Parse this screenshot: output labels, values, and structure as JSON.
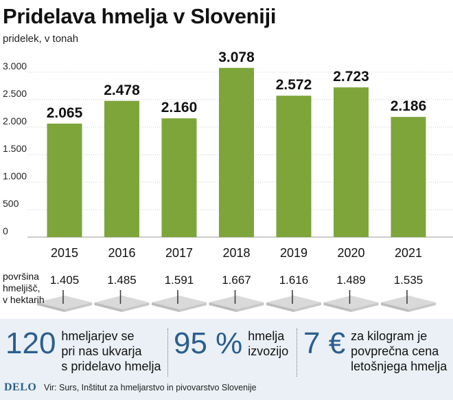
{
  "title": "Pridelava hmelja v Sloveniji",
  "subtitle": "pridelek, v tonah",
  "chart_data": {
    "type": "bar",
    "title": "Pridelava hmelja v Sloveniji",
    "subtitle": "pridelek, v tonah",
    "categories": [
      "2015",
      "2016",
      "2017",
      "2018",
      "2019",
      "2020",
      "2021"
    ],
    "values": [
      2065,
      2478,
      2160,
      3078,
      2572,
      2723,
      2186
    ],
    "data_labels": [
      "2.065",
      "2.478",
      "2.160",
      "3.078",
      "2.572",
      "2.723",
      "2.186"
    ],
    "ylim": [
      0,
      3000
    ],
    "yticks": [
      0,
      500,
      1000,
      1500,
      2000,
      2500,
      3000
    ],
    "ytick_labels": [
      "0",
      "500",
      "1.000",
      "1.500",
      "2.000",
      "2.500",
      "3.000"
    ],
    "grid": true,
    "bar_color": "#7da53a"
  },
  "area": {
    "label_lines": [
      "površina",
      "hmeljišč,",
      "v hektarih"
    ],
    "values": [
      "1.405",
      "1.485",
      "1.591",
      "1.667",
      "1.616",
      "1.489",
      "1.535"
    ]
  },
  "stats": [
    {
      "big": "120",
      "text": "hmeljarjev se\npri nas ukvarja\ns pridelavo hmelja"
    },
    {
      "big": "95 %",
      "text": "hmelja\nizvozijo"
    },
    {
      "big": "7 €",
      "text": "za kilogram je\npovprečna cena\nletošnjega hmelja"
    }
  ],
  "footer": {
    "logo": "DELO",
    "source": "Vir: Surs, Inštitut za hmeljarstvo in pivovarstvo Slovenije"
  },
  "colors": {
    "bar": "#7da53a",
    "accent": "#2b5e8f",
    "panel": "#eaf0f5",
    "grid": "#c9c9c9"
  }
}
